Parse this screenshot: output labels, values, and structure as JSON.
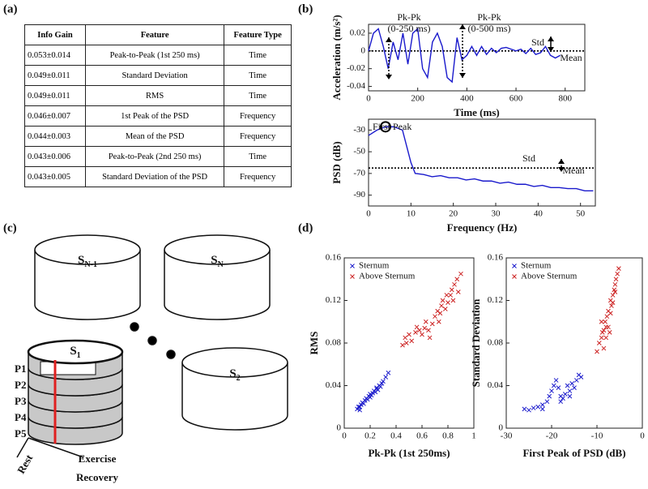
{
  "panels": {
    "a": "(a)",
    "b": "(b)",
    "c": "(c)",
    "d": "(d)"
  },
  "table": {
    "header": [
      "Info Gain",
      "Feature",
      "Feature Type"
    ],
    "rows": [
      [
        "0.053±0.014",
        "Peak-to-Peak (1st 250 ms)",
        "Time"
      ],
      [
        "0.049±0.011",
        "Standard Deviation",
        "Time"
      ],
      [
        "0.049±0.011",
        "RMS",
        "Time"
      ],
      [
        "0.046±0.007",
        "1st Peak of the PSD",
        "Frequency"
      ],
      [
        "0.044±0.003",
        "Mean of the PSD",
        "Frequency"
      ],
      [
        "0.043±0.006",
        "Peak-to-Peak (2nd 250 ms)",
        "Time"
      ],
      [
        "0.043±0.005",
        "Standard Deviation of the PSD",
        "Frequency"
      ]
    ]
  },
  "diagram": {
    "cylinders": [
      {
        "base": "S",
        "sub": "N-1"
      },
      {
        "base": "S",
        "sub": "N"
      },
      {
        "base": "S",
        "sub": "1"
      },
      {
        "base": "S",
        "sub": "2"
      }
    ],
    "phases": [
      "P1",
      "P2",
      "P3",
      "P4",
      "P5"
    ],
    "axis_labels": [
      "Rest",
      "Exercise",
      "Recovery"
    ]
  },
  "chart_data": [
    {
      "type": "line",
      "xlabel": "Time (ms)",
      "ylabel": "Acceleration (m/s²)",
      "xlim": [
        0,
        880
      ],
      "xticks": [
        0,
        200,
        400,
        600,
        800
      ],
      "ylim": [
        -0.045,
        0.03
      ],
      "yticks": [
        -0.04,
        -0.02,
        0,
        0.02
      ],
      "mean_line": 0,
      "annotations": [
        "Pk-Pk",
        "(0-250 ms)",
        "Pk-Pk",
        "(0-500 ms)",
        "Std",
        "Mean"
      ],
      "x": [
        0,
        20,
        40,
        60,
        80,
        100,
        120,
        140,
        160,
        180,
        200,
        220,
        240,
        260,
        280,
        300,
        320,
        340,
        360,
        380,
        400,
        420,
        440,
        460,
        480,
        500,
        520,
        540,
        560,
        580,
        600,
        620,
        640,
        660,
        680,
        700,
        720,
        740,
        760,
        780
      ],
      "series": [
        {
          "color": "#1a1acc",
          "values": [
            0,
            0.02,
            0.025,
            0.005,
            -0.02,
            0.01,
            -0.01,
            0.02,
            -0.015,
            0.02,
            0.025,
            -0.02,
            -0.03,
            0.01,
            0.02,
            0.005,
            -0.03,
            -0.035,
            0.015,
            -0.01,
            -0.005,
            0.005,
            -0.005,
            0.005,
            -0.004,
            0.003,
            -0.002,
            0.003,
            0.004,
            0.002,
            0,
            0.002,
            -0.003,
            0.003,
            -0.004,
            -0.002,
            0.005,
            -0.005,
            -0.008,
            -0.005
          ]
        }
      ]
    },
    {
      "type": "line",
      "xlabel": "Frequency (Hz)",
      "ylabel": "PSD (dB)",
      "xlim": [
        0,
        53.5
      ],
      "xticks": [
        0,
        10,
        20,
        30,
        40,
        50
      ],
      "ylim": [
        -100,
        -20
      ],
      "yticks": [
        -90,
        -70,
        -50,
        -30
      ],
      "mean_line": -65,
      "annotations": [
        "First Peak",
        "Std",
        "Mean"
      ],
      "x": [
        0,
        2,
        4,
        6,
        8,
        9,
        10,
        11,
        13,
        15,
        17,
        19,
        21,
        23,
        25,
        27,
        29,
        31,
        33,
        35,
        37,
        39,
        41,
        43,
        45,
        47,
        49,
        51,
        53
      ],
      "series": [
        {
          "color": "#1a1acc",
          "values": [
            -35,
            -30,
            -27,
            -27,
            -30,
            -45,
            -60,
            -70,
            -71,
            -73,
            -72,
            -74,
            -74,
            -76,
            -75,
            -77,
            -77,
            -79,
            -78,
            -80,
            -80,
            -82,
            -81,
            -83,
            -83,
            -84,
            -84,
            -86,
            -86
          ]
        }
      ]
    },
    {
      "type": "scatter",
      "xlabel": "Pk-Pk (1st 250ms)",
      "ylabel": "RMS",
      "xlim": [
        0,
        1
      ],
      "xticks": [
        0,
        0.2,
        0.4,
        0.6,
        0.8,
        1
      ],
      "ylim": [
        0,
        0.16
      ],
      "yticks": [
        0,
        0.04,
        0.08,
        0.12,
        0.16
      ],
      "legend": "upper left",
      "series": [
        {
          "name": "Sternum",
          "color": "#1a1acc",
          "x": [
            0.1,
            0.11,
            0.12,
            0.13,
            0.14,
            0.15,
            0.16,
            0.17,
            0.18,
            0.19,
            0.2,
            0.21,
            0.22,
            0.23,
            0.24,
            0.25,
            0.26,
            0.27,
            0.28,
            0.29,
            0.3,
            0.32,
            0.34,
            0.12,
            0.2,
            0.25
          ],
          "values": [
            0.018,
            0.02,
            0.017,
            0.022,
            0.024,
            0.023,
            0.026,
            0.028,
            0.027,
            0.03,
            0.032,
            0.031,
            0.033,
            0.035,
            0.034,
            0.037,
            0.036,
            0.04,
            0.039,
            0.042,
            0.044,
            0.048,
            0.052,
            0.02,
            0.029,
            0.038
          ]
        },
        {
          "name": "Above Sternum",
          "color": "#cc2222",
          "x": [
            0.45,
            0.47,
            0.48,
            0.5,
            0.52,
            0.55,
            0.56,
            0.58,
            0.6,
            0.62,
            0.63,
            0.65,
            0.66,
            0.68,
            0.7,
            0.72,
            0.73,
            0.75,
            0.76,
            0.78,
            0.8,
            0.82,
            0.83,
            0.85,
            0.87,
            0.88,
            0.9,
            0.74,
            0.79,
            0.84
          ],
          "values": [
            0.078,
            0.085,
            0.08,
            0.088,
            0.082,
            0.09,
            0.095,
            0.092,
            0.088,
            0.094,
            0.1,
            0.092,
            0.085,
            0.098,
            0.105,
            0.11,
            0.1,
            0.115,
            0.12,
            0.112,
            0.118,
            0.125,
            0.13,
            0.135,
            0.14,
            0.128,
            0.145,
            0.108,
            0.125,
            0.12
          ]
        }
      ]
    },
    {
      "type": "scatter",
      "xlabel": "First Peak of PSD (dB)",
      "ylabel": "Standard Deviation",
      "xlim": [
        -30,
        0
      ],
      "xticks": [
        -30,
        -20,
        -10,
        0
      ],
      "ylim": [
        0,
        0.16
      ],
      "yticks": [
        0,
        0.04,
        0.08,
        0.12,
        0.16
      ],
      "legend": "upper left",
      "series": [
        {
          "name": "Sternum",
          "color": "#1a1acc",
          "x": [
            -26,
            -25,
            -24,
            -23,
            -22,
            -21,
            -20.5,
            -20,
            -19.5,
            -19,
            -18.5,
            -18,
            -17.5,
            -17,
            -16.5,
            -16,
            -15.5,
            -15,
            -14.5,
            -14,
            -13.5,
            -22,
            -18,
            -16
          ],
          "values": [
            0.018,
            0.017,
            0.019,
            0.02,
            0.022,
            0.025,
            0.03,
            0.035,
            0.04,
            0.045,
            0.038,
            0.03,
            0.028,
            0.032,
            0.04,
            0.035,
            0.042,
            0.038,
            0.045,
            0.05,
            0.048,
            0.018,
            0.025,
            0.03
          ]
        },
        {
          "name": "Above Sternum",
          "color": "#cc2222",
          "x": [
            -10,
            -9.5,
            -9,
            -8.8,
            -8.5,
            -8.2,
            -8,
            -7.8,
            -7.5,
            -7.2,
            -7,
            -6.8,
            -6.5,
            -6.2,
            -6,
            -5.8,
            -5.5,
            -5.2,
            -9,
            -8,
            -7,
            -6.5,
            -7.5,
            -8.5,
            -6
          ],
          "values": [
            0.072,
            0.08,
            0.085,
            0.09,
            0.075,
            0.1,
            0.095,
            0.105,
            0.11,
            0.09,
            0.12,
            0.115,
            0.125,
            0.13,
            0.135,
            0.14,
            0.145,
            0.15,
            0.1,
            0.085,
            0.108,
            0.118,
            0.095,
            0.092,
            0.128
          ]
        }
      ]
    }
  ]
}
